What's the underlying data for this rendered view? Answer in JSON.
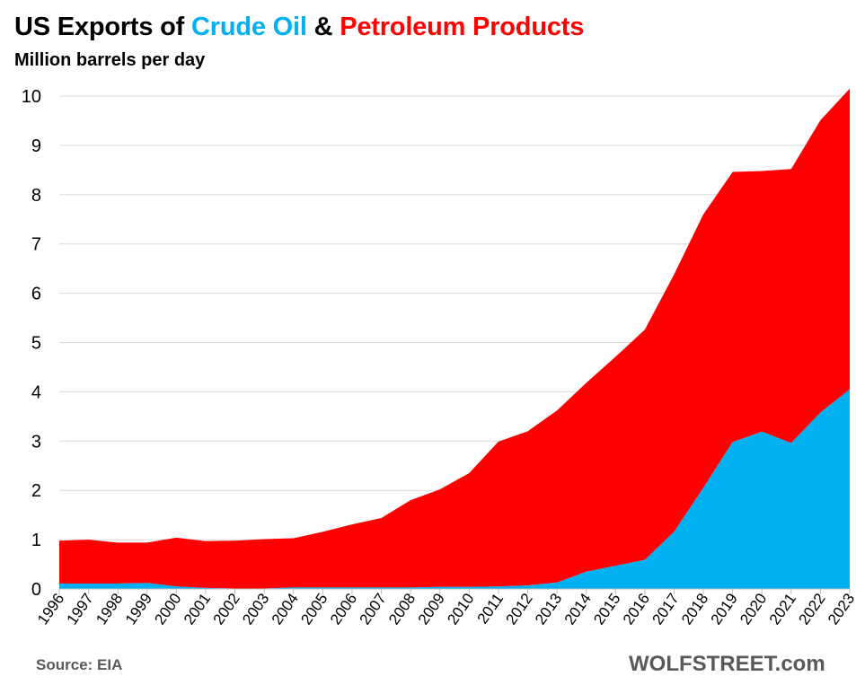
{
  "title": {
    "prefix": "US Exports of ",
    "crude": "Crude Oil",
    "amp": " & ",
    "petro": "Petroleum Products"
  },
  "subtitle": "Million barrels per day",
  "source": "Source: EIA",
  "brand": "WOLFSTREET.com",
  "colors": {
    "crude": "#00b0f0",
    "petroleum": "#ff0000",
    "grid": "#d9d9d9"
  },
  "chart_data": {
    "type": "area",
    "stacked": true,
    "title": "US Exports of Crude Oil & Petroleum Products",
    "ylabel": "Million barrels per day",
    "ylim": [
      0,
      10
    ],
    "yticks": [
      0,
      1,
      2,
      3,
      4,
      5,
      6,
      7,
      8,
      9,
      10
    ],
    "grid": true,
    "x": [
      "1996",
      "1997",
      "1998",
      "1999",
      "2000",
      "2001",
      "2002",
      "2003",
      "2004",
      "2005",
      "2006",
      "2007",
      "2008",
      "2009",
      "2010",
      "2011",
      "2012",
      "2013",
      "2014",
      "2015",
      "2016",
      "2017",
      "2018",
      "2019",
      "2020",
      "2021",
      "2022",
      "2023"
    ],
    "series": [
      {
        "name": "Crude Oil",
        "color": "#00b0f0",
        "values": [
          0.11,
          0.11,
          0.11,
          0.12,
          0.05,
          0.02,
          0.01,
          0.01,
          0.03,
          0.03,
          0.03,
          0.03,
          0.03,
          0.04,
          0.04,
          0.05,
          0.07,
          0.13,
          0.35,
          0.47,
          0.59,
          1.16,
          2.05,
          2.98,
          3.19,
          2.96,
          3.58,
          4.05
        ]
      },
      {
        "name": "Petroleum Products",
        "color": "#ff0000",
        "values": [
          0.87,
          0.89,
          0.83,
          0.82,
          0.99,
          0.95,
          0.97,
          1.0,
          1.0,
          1.13,
          1.28,
          1.41,
          1.77,
          1.98,
          2.31,
          2.94,
          3.13,
          3.49,
          3.83,
          4.24,
          4.67,
          5.22,
          5.55,
          5.48,
          5.29,
          5.56,
          5.93,
          6.1
        ]
      }
    ]
  }
}
